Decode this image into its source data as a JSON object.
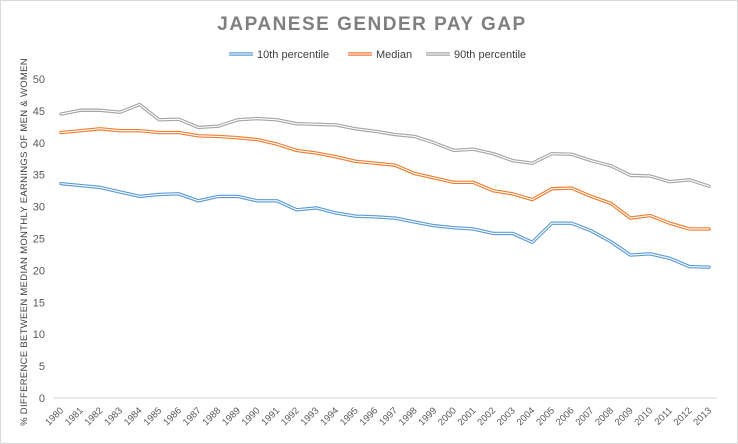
{
  "chart_data": {
    "type": "line",
    "title": "JAPANESE GENDER PAY GAP",
    "xlabel": "",
    "ylabel": "% DIFFERENCE BETWEEN MEDIAN MONTHLY EARNINGS OF MEN & WOMEN",
    "ylim": [
      0,
      50
    ],
    "yticks": [
      0,
      5,
      10,
      15,
      20,
      25,
      30,
      35,
      40,
      45,
      50
    ],
    "grid": false,
    "legend_position": "top",
    "categories": [
      "1980",
      "1981",
      "1982",
      "1983",
      "1984",
      "1985",
      "1986",
      "1987",
      "1988",
      "1989",
      "1990",
      "1991",
      "1992",
      "1993",
      "1994",
      "1995",
      "1996",
      "1997",
      "1998",
      "1999",
      "2000",
      "2001",
      "2002",
      "2003",
      "2004",
      "2005",
      "2006",
      "2007",
      "2008",
      "2009",
      "2010",
      "2011",
      "2012",
      "2013"
    ],
    "series": [
      {
        "name": "10th percentile",
        "color": "#5b9bd5",
        "values": [
          33.6,
          33.3,
          33.0,
          32.3,
          31.6,
          31.9,
          32.0,
          30.9,
          31.6,
          31.6,
          30.9,
          30.9,
          29.5,
          29.8,
          29.0,
          28.5,
          28.4,
          28.2,
          27.6,
          27.0,
          26.7,
          26.5,
          25.8,
          25.8,
          24.4,
          27.4,
          27.4,
          26.2,
          24.5,
          22.4,
          22.6,
          21.9,
          20.6,
          20.5
        ],
        "double_line": true
      },
      {
        "name": "Median",
        "color": "#ed7d31",
        "values": [
          41.6,
          41.9,
          42.2,
          41.9,
          41.9,
          41.6,
          41.6,
          41.1,
          41.0,
          40.8,
          40.5,
          39.8,
          38.8,
          38.4,
          37.8,
          37.1,
          36.8,
          36.5,
          35.2,
          34.5,
          33.8,
          33.8,
          32.5,
          32.0,
          31.1,
          32.8,
          32.9,
          31.6,
          30.5,
          28.2,
          28.6,
          27.4,
          26.5,
          26.5
        ],
        "double_line": true
      },
      {
        "name": "90th percentile",
        "color": "#a5a5a5",
        "values": [
          44.5,
          45.1,
          45.1,
          44.8,
          46.0,
          43.6,
          43.7,
          42.4,
          42.6,
          43.6,
          43.8,
          43.6,
          43.0,
          42.9,
          42.8,
          42.2,
          41.8,
          41.3,
          41.0,
          40.0,
          38.8,
          39.0,
          38.3,
          37.2,
          36.8,
          38.3,
          38.2,
          37.2,
          36.4,
          34.9,
          34.8,
          33.9,
          34.2,
          33.2
        ],
        "double_line": true
      }
    ]
  }
}
